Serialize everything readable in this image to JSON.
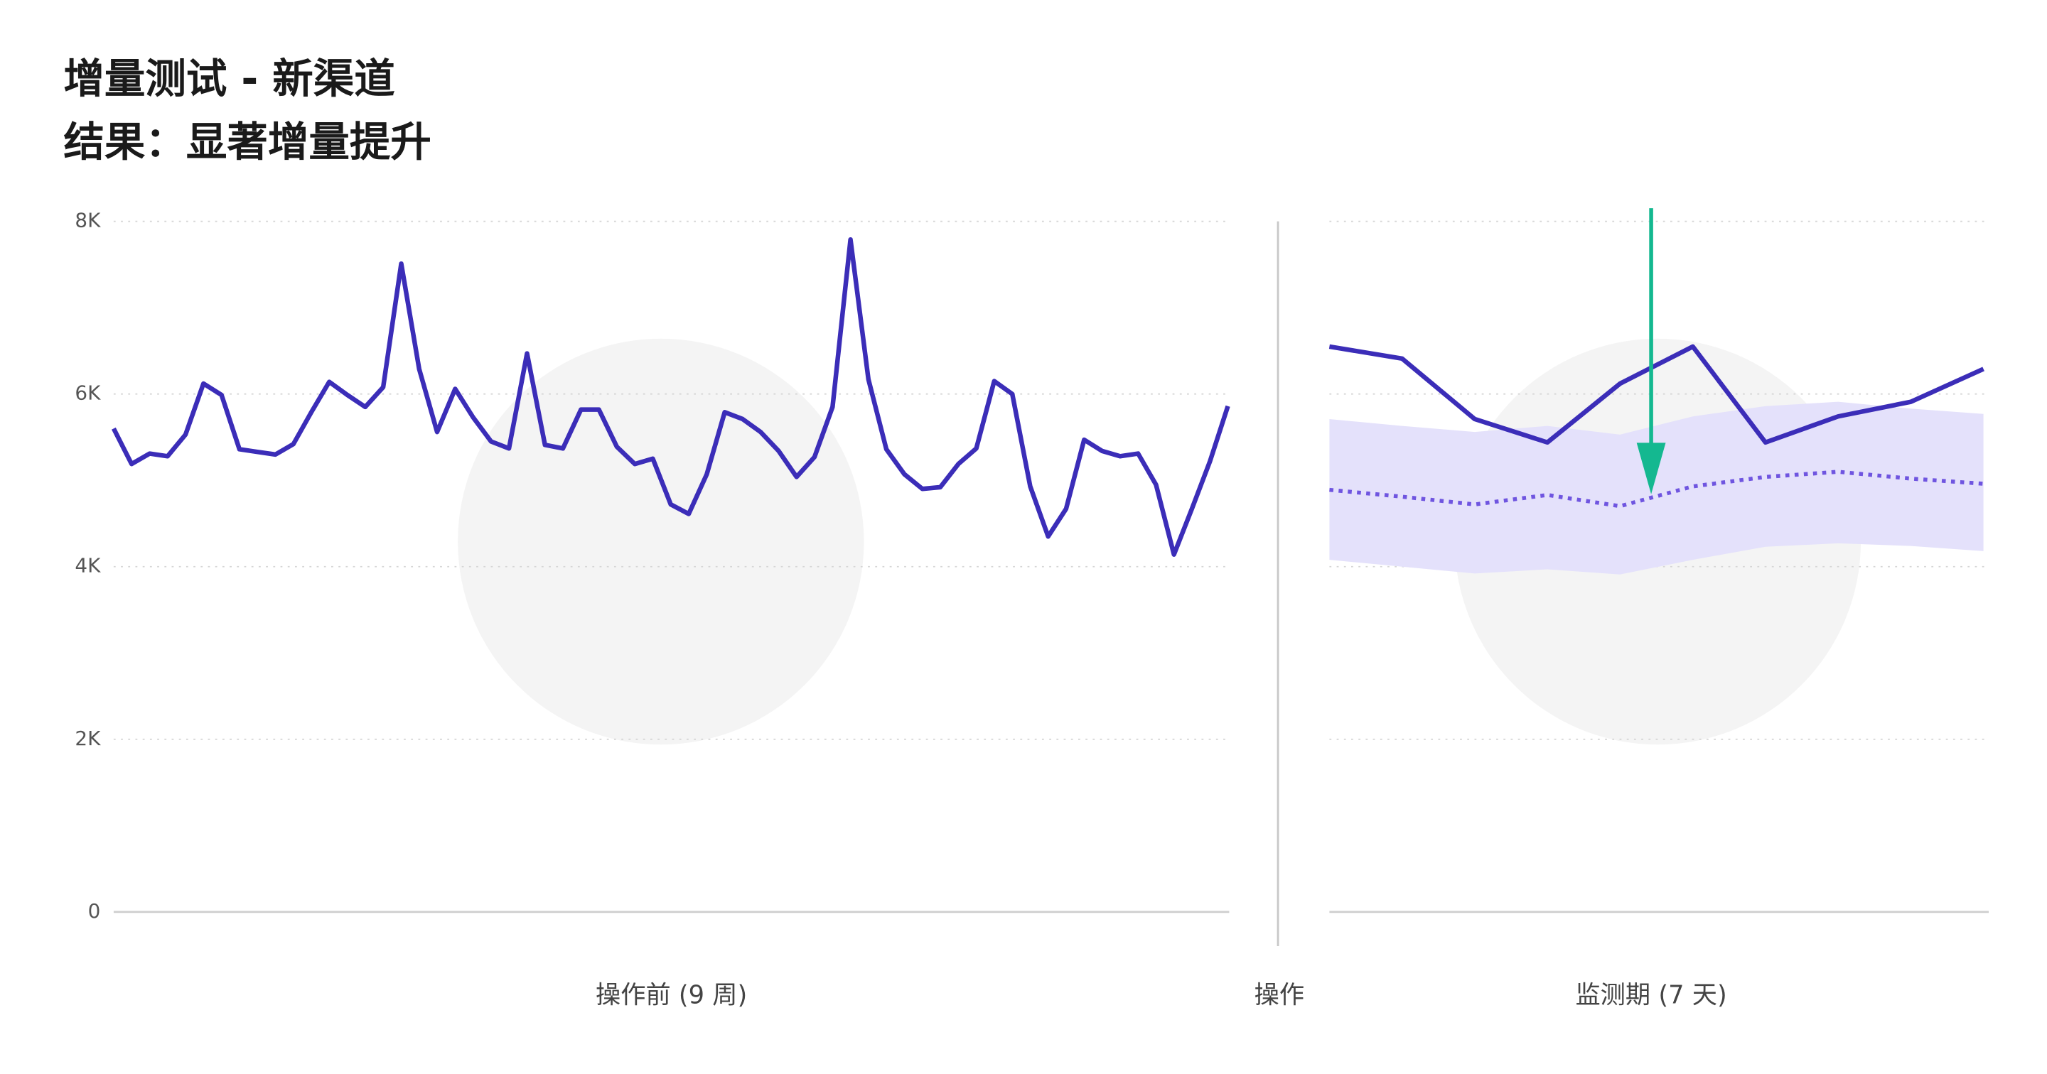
{
  "chart_data": [
    {
      "type": "line",
      "title": "增量测试 - 新渠道",
      "subtitle": "结果：显著增量提升",
      "x_label": "操作前 (9 周)",
      "color": "#3b2db8",
      "ylim": [
        0,
        8000
      ],
      "yticks": [
        0,
        {
          "value": 2000,
          "label": "2K"
        },
        {
          "value": 4000,
          "label": "4K"
        },
        {
          "value": 6000,
          "label": "6K"
        },
        {
          "value": 8000,
          "label": "8K"
        }
      ],
      "grid": true,
      "values": [
        5600,
        5190,
        5310,
        5280,
        5530,
        6120,
        5990,
        5360,
        5330,
        5300,
        5420,
        5790,
        6140,
        5990,
        5850,
        6080,
        7510,
        6290,
        5560,
        6060,
        5730,
        5450,
        5370,
        6470,
        5410,
        5370,
        5820,
        5820,
        5390,
        5190,
        5250,
        4720,
        4610,
        5070,
        5790,
        5710,
        5560,
        5340,
        5040,
        5270,
        5850,
        7790,
        6170,
        5360,
        5070,
        4900,
        4920,
        5190,
        5370,
        6150,
        6000,
        4930,
        4350,
        4670,
        5470,
        5340,
        5280,
        5310,
        4950,
        4140,
        4670,
        5220,
        5860
      ]
    },
    {
      "type": "line",
      "x_label": "监测期 (7 天)",
      "annotation": "操作",
      "series": [
        {
          "color": "#3b2db8",
          "style": "solid",
          "values": [
            6550,
            6410,
            5710,
            5440,
            6120,
            6550,
            5440,
            5740,
            5910,
            6290
          ]
        },
        {
          "color": "#6f55e0",
          "style": "dotted",
          "values": [
            4890,
            4810,
            4720,
            4830,
            4700,
            4930,
            5040,
            5100,
            5020,
            4960
          ]
        }
      ],
      "band": {
        "color": "#e4e1fb",
        "lower": [
          4080,
          4000,
          3920,
          3970,
          3910,
          4080,
          4230,
          4270,
          4240,
          4180
        ],
        "upper": [
          5710,
          5630,
          5560,
          5630,
          5530,
          5740,
          5860,
          5910,
          5830,
          5770
        ]
      }
    }
  ]
}
